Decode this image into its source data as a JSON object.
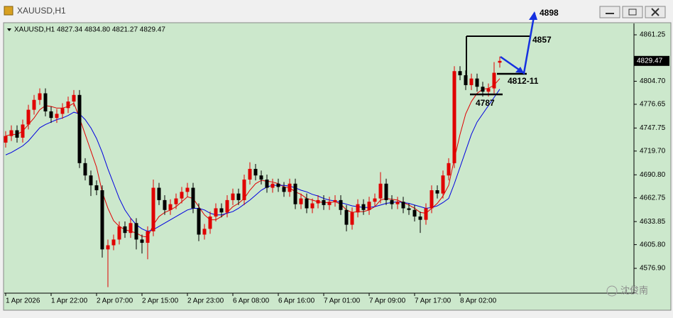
{
  "window_title": "XAUUSD,H1",
  "chart_data": {
    "type": "candlestick",
    "legend_text": "XAUUSD,H1  4827.34 4834.80 4821.27 4829.47",
    "categories": [
      "1 Apr 2026",
      null,
      null,
      null,
      null,
      null,
      null,
      null,
      "1 Apr 22:00",
      null,
      null,
      null,
      null,
      null,
      null,
      null,
      "2 Apr 07:00",
      null,
      null,
      null,
      null,
      null,
      null,
      null,
      "2 Apr 15:00",
      null,
      null,
      null,
      null,
      null,
      null,
      null,
      "2 Apr 23:00",
      null,
      null,
      null,
      null,
      null,
      null,
      null,
      "6 Apr 08:00",
      null,
      null,
      null,
      null,
      null,
      null,
      null,
      "6 Apr 16:00",
      null,
      null,
      null,
      null,
      null,
      null,
      null,
      "7 Apr 01:00",
      null,
      null,
      null,
      null,
      null,
      null,
      null,
      "7 Apr 09:00",
      null,
      null,
      null,
      null,
      null,
      null,
      null,
      "7 Apr 17:00",
      null,
      null,
      null,
      null,
      null,
      null,
      null,
      "8 Apr 02:00",
      null,
      null,
      null,
      null,
      null,
      null,
      null
    ],
    "open": [
      4730,
      4738,
      4745,
      4736,
      4752,
      4770,
      4782,
      4790,
      4768,
      4760,
      4765,
      4772,
      4780,
      4788,
      4705,
      4690,
      4678,
      4672,
      4600,
      4605,
      4612,
      4628,
      4620,
      4632,
      4612,
      4608,
      4622,
      4675,
      4660,
      4648,
      4655,
      4662,
      4670,
      4675,
      4650,
      4618,
      4625,
      4640,
      4650,
      4645,
      4660,
      4668,
      4660,
      4685,
      4698,
      4690,
      4685,
      4675,
      4680,
      4676,
      4670,
      4680,
      4655,
      4662,
      4650,
      4656,
      4660,
      4654,
      4658,
      4660,
      4648,
      4630,
      4645,
      4655,
      4648,
      4658,
      4662,
      4680,
      4660,
      4655,
      4658,
      4650,
      4648,
      4640,
      4636,
      4650,
      4672,
      4668,
      4690,
      4705,
      4817,
      4812,
      4800,
      4808,
      4798,
      4792,
      4796,
      4827.34
    ],
    "high": [
      4744,
      4751,
      4751,
      4758,
      4776,
      4788,
      4796,
      4796,
      4774,
      4771,
      4778,
      4786,
      4794,
      4794,
      4711,
      4696,
      4684,
      4678,
      4612,
      4618,
      4634,
      4634,
      4638,
      4638,
      4618,
      4628,
      4685,
      4681,
      4666,
      4661,
      4668,
      4676,
      4681,
      4681,
      4656,
      4631,
      4646,
      4656,
      4656,
      4666,
      4674,
      4674,
      4691,
      4706,
      4704,
      4696,
      4691,
      4686,
      4686,
      4682,
      4686,
      4686,
      4668,
      4668,
      4662,
      4666,
      4666,
      4664,
      4666,
      4666,
      4654,
      4651,
      4661,
      4661,
      4664,
      4668,
      4694,
      4686,
      4666,
      4664,
      4664,
      4656,
      4654,
      4646,
      4656,
      4678,
      4678,
      4696,
      4711,
      4823,
      4823,
      4818,
      4814,
      4814,
      4804,
      4802,
      4828,
      4834.8
    ],
    "low": [
      4724,
      4732,
      4730,
      4730,
      4746,
      4764,
      4776,
      4762,
      4754,
      4754,
      4759,
      4766,
      4774,
      4699,
      4684,
      4665,
      4666,
      4590,
      4554,
      4599,
      4606,
      4614,
      4614,
      4600,
      4595,
      4588,
      4616,
      4654,
      4642,
      4642,
      4649,
      4656,
      4664,
      4644,
      4610,
      4612,
      4619,
      4634,
      4639,
      4639,
      4654,
      4654,
      4654,
      4679,
      4684,
      4679,
      4669,
      4669,
      4670,
      4664,
      4664,
      4649,
      4649,
      4644,
      4644,
      4650,
      4648,
      4648,
      4652,
      4642,
      4622,
      4624,
      4639,
      4642,
      4642,
      4652,
      4656,
      4654,
      4649,
      4649,
      4644,
      4642,
      4634,
      4620,
      4630,
      4644,
      4662,
      4662,
      4684,
      4699,
      4806,
      4794,
      4794,
      4792,
      4786,
      4786,
      4790,
      4821.27
    ],
    "close": [
      4738,
      4745,
      4736,
      4752,
      4770,
      4782,
      4790,
      4768,
      4760,
      4765,
      4772,
      4780,
      4788,
      4705,
      4690,
      4678,
      4672,
      4600,
      4605,
      4612,
      4628,
      4620,
      4632,
      4612,
      4608,
      4622,
      4675,
      4660,
      4648,
      4655,
      4662,
      4670,
      4675,
      4650,
      4618,
      4625,
      4640,
      4650,
      4645,
      4660,
      4668,
      4660,
      4685,
      4698,
      4690,
      4685,
      4675,
      4680,
      4676,
      4670,
      4680,
      4655,
      4662,
      4650,
      4656,
      4660,
      4654,
      4658,
      4660,
      4648,
      4630,
      4645,
      4655,
      4648,
      4658,
      4662,
      4680,
      4660,
      4655,
      4658,
      4650,
      4648,
      4640,
      4636,
      4650,
      4672,
      4668,
      4690,
      4705,
      4817,
      4812,
      4800,
      4808,
      4798,
      4792,
      4796,
      4815,
      4829.47
    ],
    "up_color": "#e00000",
    "down_color": "#000000",
    "ma_lines": [
      {
        "color": "#e00000",
        "values": [
          4738,
          4740,
          4740,
          4744,
          4752,
          4760,
          4770,
          4775,
          4774,
          4772,
          4772,
          4774,
          4778,
          4760,
          4740,
          4720,
          4700,
          4670,
          4650,
          4635,
          4628,
          4624,
          4622,
          4620,
          4616,
          4615,
          4630,
          4640,
          4645,
          4648,
          4652,
          4658,
          4664,
          4662,
          4652,
          4642,
          4636,
          4636,
          4640,
          4645,
          4652,
          4656,
          4662,
          4672,
          4680,
          4684,
          4683,
          4682,
          4680,
          4676,
          4675,
          4670,
          4667,
          4662,
          4660,
          4658,
          4657,
          4657,
          4658,
          4655,
          4648,
          4645,
          4646,
          4646,
          4648,
          4652,
          4660,
          4662,
          4661,
          4660,
          4657,
          4654,
          4650,
          4645,
          4644,
          4650,
          4656,
          4665,
          4678,
          4710,
          4740,
          4765,
          4780,
          4790,
          4795,
          4796,
          4800,
          4808
        ]
      },
      {
        "color": "#0000e0",
        "values": [
          4715,
          4718,
          4722,
          4726,
          4732,
          4740,
          4748,
          4752,
          4755,
          4758,
          4760,
          4763,
          4767,
          4765,
          4758,
          4748,
          4735,
          4718,
          4698,
          4680,
          4662,
          4648,
          4638,
          4630,
          4625,
          4622,
          4624,
          4628,
          4632,
          4636,
          4640,
          4644,
          4648,
          4650,
          4650,
          4648,
          4644,
          4642,
          4642,
          4644,
          4646,
          4650,
          4655,
          4660,
          4666,
          4672,
          4676,
          4678,
          4678,
          4678,
          4677,
          4675,
          4672,
          4670,
          4667,
          4665,
          4662,
          4660,
          4659,
          4657,
          4655,
          4653,
          4652,
          4651,
          4651,
          4652,
          4654,
          4656,
          4657,
          4658,
          4657,
          4656,
          4654,
          4652,
          4650,
          4651,
          4653,
          4657,
          4662,
          4680,
          4700,
          4720,
          4740,
          4755,
          4765,
          4775,
          4785,
          4795
        ]
      }
    ],
    "ylim": [
      4546.7,
      4875.1
    ],
    "yticks": [
      4861.25,
      {
        "value": 4804.7,
        "label": "4804.70"
      },
      4776.65,
      4747.75,
      {
        "value": 4719.7,
        "label": "4719.70"
      },
      {
        "value": 4690.8,
        "label": "4690.80"
      },
      4662.75,
      4633.85,
      {
        "value": 4605.8,
        "label": "4605.80"
      },
      {
        "value": 4576.9,
        "label": "4576.90"
      }
    ],
    "annotations": [
      "4898",
      "4857",
      "4812-11",
      "4787"
    ],
    "watermark": "沈俊南"
  }
}
